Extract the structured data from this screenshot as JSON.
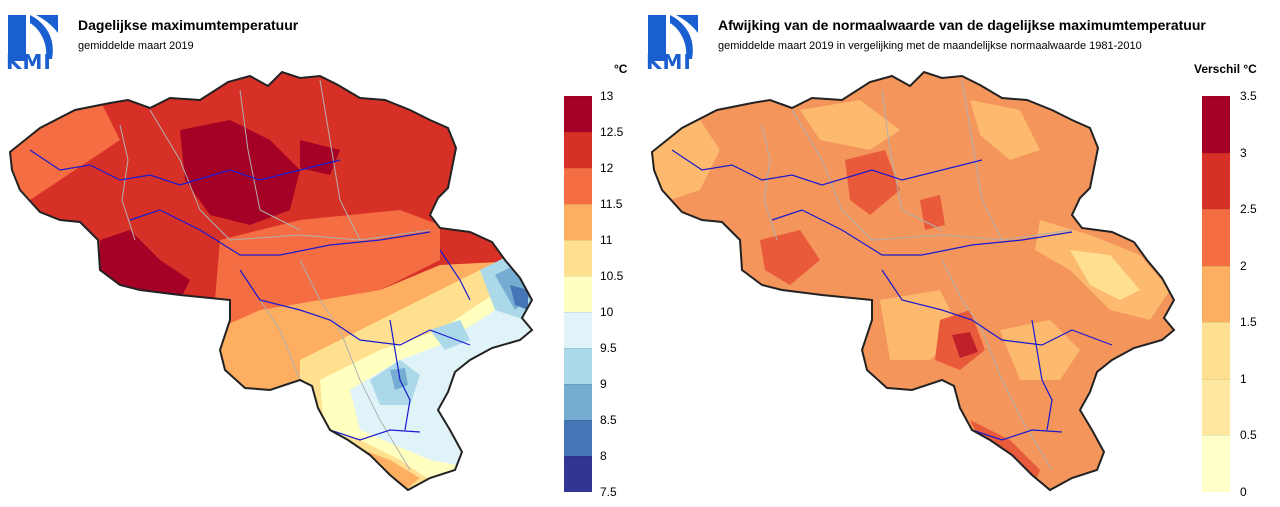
{
  "left_panel": {
    "logo_text": "KMI",
    "title": "Dagelijkse maximumtemperatuur",
    "subtitle": "gemiddelde maart 2019",
    "unit": "°C",
    "legend": {
      "ticks": [
        "13",
        "12.5",
        "12",
        "11.5",
        "11",
        "10.5",
        "10",
        "9.5",
        "9",
        "8.5",
        "8",
        "7.5"
      ],
      "colors": [
        "#a50026",
        "#d73027",
        "#f46d43",
        "#fdae61",
        "#fee090",
        "#ffffbf",
        "#e0f3f8",
        "#abd9e9",
        "#74add1",
        "#4575b4",
        "#313695"
      ]
    }
  },
  "right_panel": {
    "logo_text": "KMI",
    "title": "Afwijking van de normaalwaarde van de dagelijkse maximumtemperatuur",
    "subtitle": "gemiddelde maart 2019 in vergelijking met de maandelijkse normaalwaarde 1981-2010",
    "unit": "Verschil °C",
    "legend": {
      "ticks": [
        "3.5",
        "3",
        "2.5",
        "2",
        "1.5",
        "1",
        "0.5",
        "0"
      ],
      "colors": [
        "#a50026",
        "#d73027",
        "#f46d43",
        "#fdae61",
        "#fee090",
        "#fee8a0",
        "#ffffc8"
      ]
    }
  }
}
